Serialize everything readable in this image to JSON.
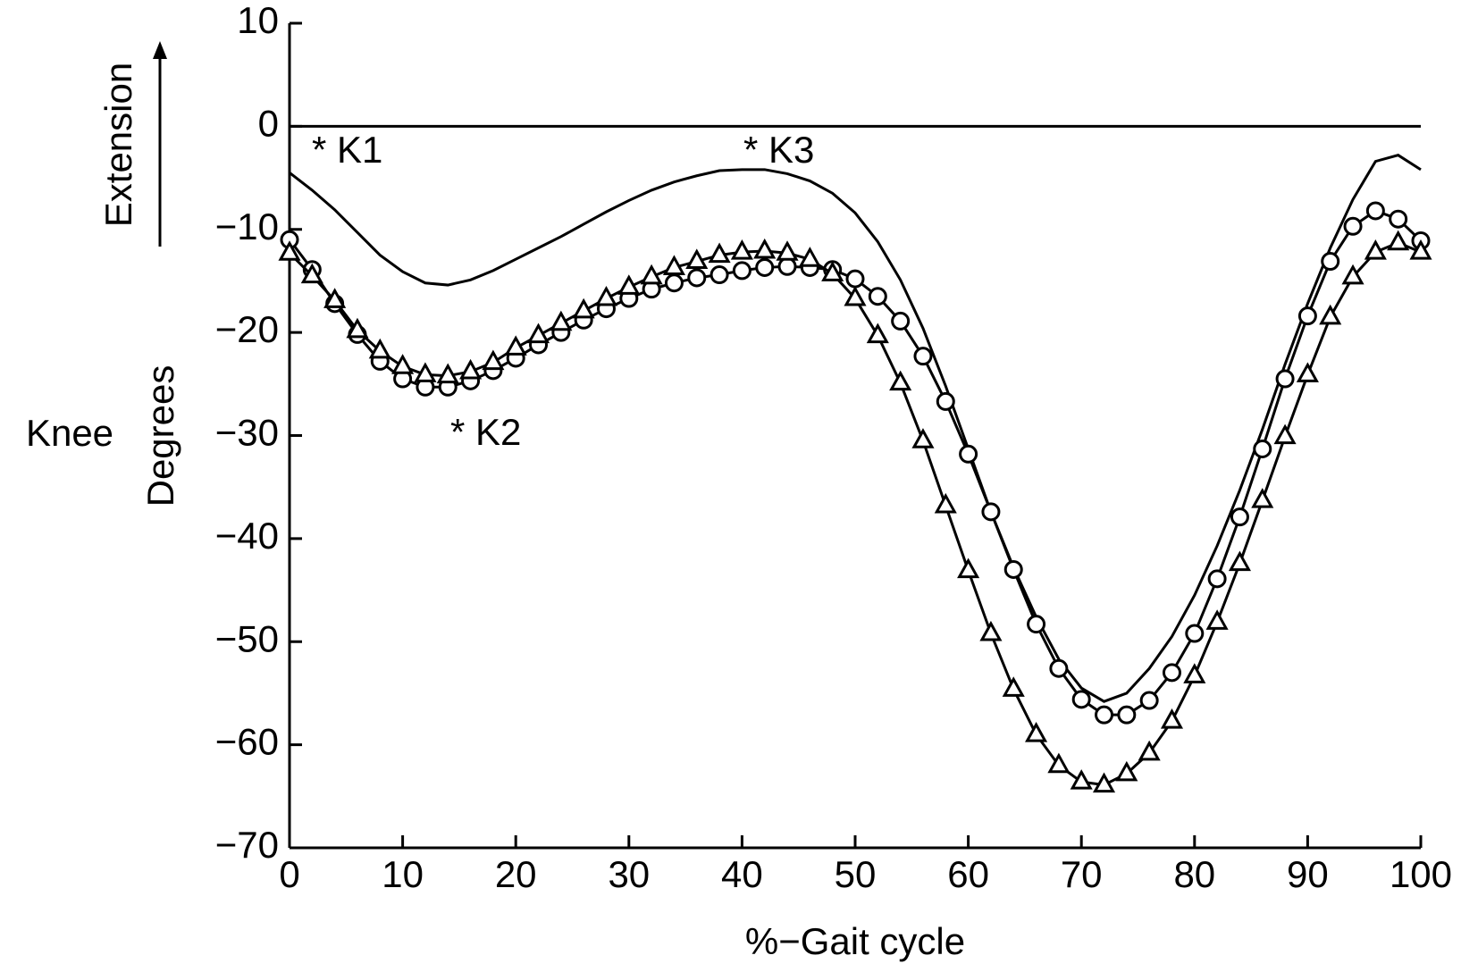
{
  "chart_data": {
    "type": "line",
    "y_label_left": "Knee",
    "y_label": "Degrees",
    "direction_label": "Extension",
    "x_label": "%−Gait cycle",
    "annotations": [
      "* K1",
      "* K2",
      "* K3"
    ],
    "x": [
      0,
      2,
      4,
      6,
      8,
      10,
      12,
      14,
      16,
      18,
      20,
      22,
      24,
      26,
      28,
      30,
      32,
      34,
      36,
      38,
      40,
      42,
      44,
      46,
      48,
      50,
      52,
      54,
      56,
      58,
      60,
      62,
      64,
      66,
      68,
      70,
      72,
      74,
      76,
      78,
      80,
      82,
      84,
      86,
      88,
      90,
      92,
      94,
      96,
      98,
      100
    ],
    "xlim": [
      0,
      100
    ],
    "xticks": [
      0,
      10,
      20,
      30,
      40,
      50,
      60,
      70,
      80,
      90,
      100
    ],
    "ylim": [
      -70,
      10
    ],
    "yticks": [
      10,
      0,
      {
        "value": -10,
        "label": "−10"
      },
      {
        "value": -20,
        "label": "−20"
      },
      {
        "value": -30,
        "label": "−30"
      },
      {
        "value": -40,
        "label": "−40"
      },
      {
        "value": -50,
        "label": "−50"
      },
      {
        "value": -60,
        "label": "−60"
      },
      {
        "value": -70,
        "label": "−70"
      }
    ],
    "zero_line": true,
    "series": [
      {
        "color": "#000000",
        "marker": "none",
        "values": [
          -4.5,
          -6.2,
          -8.1,
          -10.3,
          -12.5,
          -14.1,
          -15.2,
          -15.4,
          -14.9,
          -14.0,
          -12.9,
          -11.8,
          -10.7,
          -9.5,
          -8.3,
          -7.2,
          -6.2,
          -5.4,
          -4.8,
          -4.3,
          -4.2,
          -4.2,
          -4.6,
          -5.3,
          -6.5,
          -8.4,
          -11.2,
          -14.9,
          -19.6,
          -25.2,
          -31.3,
          -37.4,
          -42.8,
          -47.6,
          -51.7,
          -54.5,
          -55.8,
          -55.0,
          -52.6,
          -49.5,
          -45.5,
          -40.7,
          -35.3,
          -29.4,
          -23.1,
          -17.2,
          -11.8,
          -7.1,
          -3.4,
          -2.8,
          -4.2
        ]
      },
      {
        "color": "#000000",
        "marker": "circle",
        "values": [
          -11.0,
          -13.9,
          -17.2,
          -20.2,
          -22.8,
          -24.5,
          -25.3,
          -25.3,
          -24.7,
          -23.7,
          -22.5,
          -21.2,
          -20.0,
          -18.8,
          -17.7,
          -16.7,
          -15.8,
          -15.2,
          -14.7,
          -14.4,
          -14.0,
          -13.7,
          -13.6,
          -13.7,
          -13.9,
          -14.8,
          -16.5,
          -18.9,
          -22.3,
          -26.7,
          -31.8,
          -37.4,
          -43.0,
          -48.3,
          -52.6,
          -55.6,
          -57.1,
          -57.1,
          -55.7,
          -53.0,
          -49.2,
          -43.9,
          -37.9,
          -31.3,
          -24.5,
          -18.4,
          -13.1,
          -9.7,
          -8.2,
          -9.0,
          -11.1
        ]
      },
      {
        "color": "#000000",
        "marker": "triangle",
        "values": [
          -12.3,
          -14.5,
          -16.9,
          -19.8,
          -21.8,
          -23.3,
          -24.1,
          -24.2,
          -23.8,
          -22.9,
          -21.5,
          -20.3,
          -19.1,
          -17.9,
          -16.7,
          -15.6,
          -14.6,
          -13.7,
          -13.1,
          -12.5,
          -12.2,
          -12.1,
          -12.3,
          -12.9,
          -14.3,
          -16.7,
          -20.3,
          -24.9,
          -30.5,
          -36.8,
          -43.1,
          -49.2,
          -54.6,
          -59.0,
          -62.0,
          -63.6,
          -63.9,
          -62.8,
          -60.8,
          -57.7,
          -53.3,
          -48.1,
          -42.4,
          -36.3,
          -30.1,
          -24.1,
          -18.5,
          -14.6,
          -12.2,
          -11.3,
          -12.2
        ]
      }
    ]
  }
}
